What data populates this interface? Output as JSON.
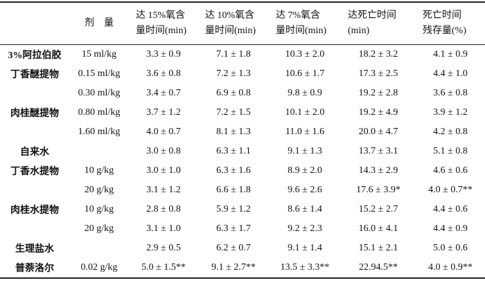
{
  "table": {
    "header": [
      [
        "剂　量"
      ],
      [
        "达 15%氧含",
        "量时间(min)"
      ],
      [
        "达 10%氧含",
        "量时间(min)"
      ],
      [
        "达 7%氧含",
        "量时间(min)"
      ],
      [
        "达死亡时间",
        "(min)"
      ],
      [
        "死亡时间",
        "残存量(%)"
      ]
    ],
    "rows": [
      {
        "group": "3%阿拉伯胶",
        "dose": "15 ml/kg",
        "values": [
          "3.3 ± 0.9",
          "7.1 ± 1.8",
          "10.3 ± 2.0",
          "18.2 ± 3.2",
          "4.1 ± 0.9"
        ]
      },
      {
        "group": "丁香醚提物",
        "dose": "0.15 ml/kg",
        "values": [
          "3.6 ± 0.8",
          "7.2 ± 1.3",
          "10.6 ± 1.7",
          "17.3 ± 2.5",
          "4.4 ± 1.0"
        ]
      },
      {
        "dose": "0.30 ml/kg",
        "values": [
          "3.4 ± 0.7",
          "6.9 ± 0.8",
          "9.8 ± 0.9",
          "19.2 ± 2.8",
          "3.6 ± 0.8"
        ]
      },
      {
        "group": "肉桂醚提物",
        "dose": "0.80 ml/kg",
        "values": [
          "3.7 ± 1.2",
          "7.2 ± 1.5",
          "10.1 ± 2.0",
          "19.2 ± 4.9",
          "3.9 ± 1.2"
        ]
      },
      {
        "dose": "1.60 ml/kg",
        "values": [
          "4.0 ± 0.7",
          "8.1 ± 1.3",
          "11.0 ± 1.6",
          "20.0 ± 4.7",
          "4.2 ± 0.8"
        ]
      },
      {
        "group": "自来水",
        "values": [
          "3.0 ± 0.8",
          "6.3 ± 1.1",
          "9.1 ± 1.3",
          "13.7 ± 3.1",
          "5.1 ± 0.8"
        ]
      },
      {
        "group": "丁香水提物",
        "dose": "10 g/kg",
        "values": [
          "3.0 ± 1.0",
          "6.3 ± 1.6",
          "8.9 ± 2.0",
          "14.3 ± 2.9",
          "4.6 ± 0.6"
        ]
      },
      {
        "dose": "20 g/kg",
        "values": [
          "3.1 ± 1.2",
          "6.6 ± 1.8",
          "9.6 ± 2.6",
          "17.6 ± 3.9*",
          "4.0 ± 0.7**"
        ]
      },
      {
        "group": "肉桂水提物",
        "dose": "10 g/kg",
        "values": [
          "2.8 ± 0.8",
          "5.9 ± 1.2",
          "8.6 ± 1.4",
          "15.2 ± 2.7",
          "4.4 ± 0.6"
        ]
      },
      {
        "dose": "20 g/kg",
        "values": [
          "3.1 ± 1.0",
          "6.3 ± 1.7",
          "9.2 ± 2.3",
          "16.0 ± 4.1",
          "4.4 ± 0.9"
        ]
      },
      {
        "group": "生理盐水",
        "values": [
          "2.9 ± 0.5",
          "6.2 ± 0.7",
          "9.1 ± 1.4",
          "15.1 ± 2.1",
          "5.0 ± 0.6"
        ]
      },
      {
        "group": "普萘洛尔",
        "dose": "0.02 g/kg",
        "values": [
          "5.0 ± 1.5**",
          "9.1 ± 2.7**",
          "13.5 ± 3.3**",
          "22.94.5**",
          "4.0 ± 0.9**"
        ]
      }
    ]
  }
}
